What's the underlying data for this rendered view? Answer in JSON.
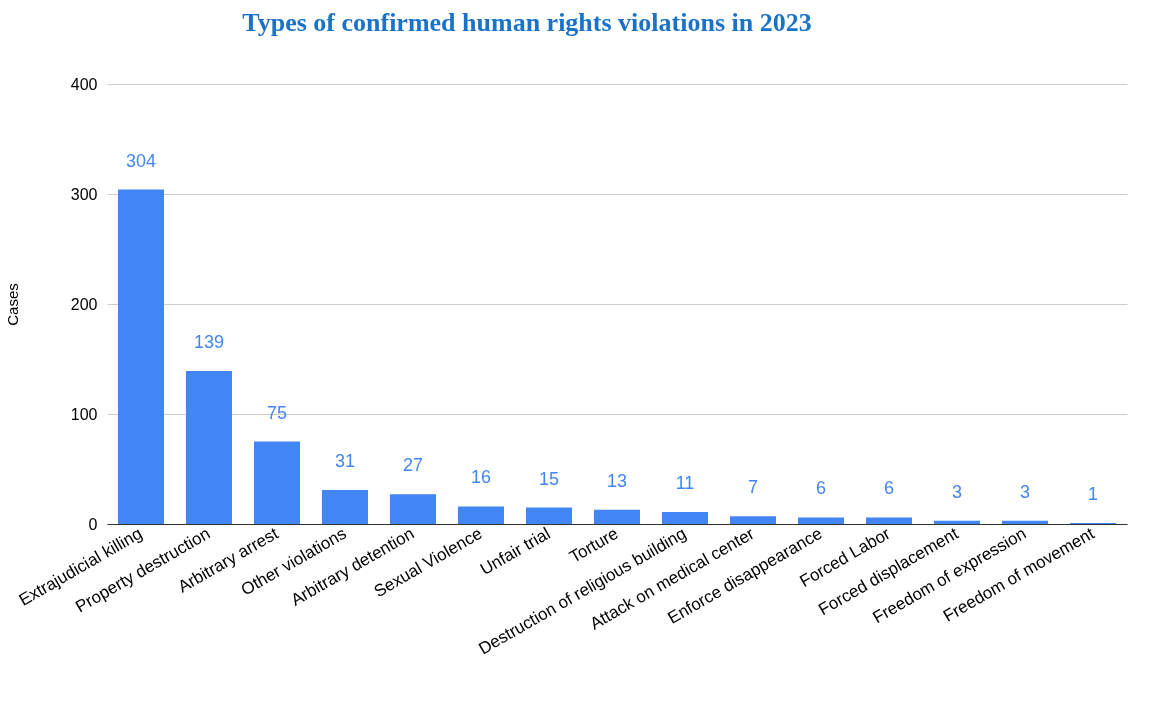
{
  "chart_data": {
    "type": "bar",
    "title": "Types of confirmed human rights violations in 2023",
    "ylabel": "Cases",
    "categories": [
      "Extrajudicial killing",
      "Property destruction",
      "Arbitrary arrest",
      "Other violations",
      "Arbitrary detention",
      "Sexual Violence",
      "Unfair trial",
      "Torture",
      "Destruction of religious building",
      "Attack on medical center",
      "Enforce disappearance",
      "Forced Labor",
      "Forced displacement",
      "Freedom of expression",
      "Freedom of movement"
    ],
    "values": [
      304,
      139,
      75,
      31,
      27,
      16,
      15,
      13,
      11,
      7,
      6,
      6,
      3,
      3,
      1
    ],
    "color": "#4285f4",
    "ylim": [
      0,
      400
    ],
    "yticks": [
      0,
      100,
      200,
      300,
      400
    ],
    "grid": "y",
    "data_labels": true
  }
}
